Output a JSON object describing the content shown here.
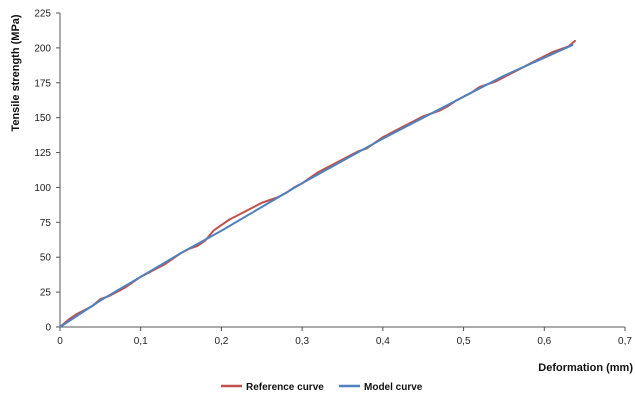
{
  "chart_data": {
    "type": "line",
    "title": "",
    "xlabel": "Deformation (mm)",
    "ylabel": "Tensile strength (MPa)",
    "xlim": [
      0,
      0.7
    ],
    "ylim": [
      0,
      225
    ],
    "x_ticks": [
      0,
      0.1,
      0.2,
      0.3,
      0.4,
      0.5,
      0.6,
      0.7
    ],
    "x_tick_labels": [
      "0",
      "0,1",
      "0,2",
      "0,3",
      "0,4",
      "0,5",
      "0,6",
      "0,7"
    ],
    "y_ticks": [
      0,
      25,
      50,
      75,
      100,
      125,
      150,
      175,
      200,
      225
    ],
    "y_tick_labels": [
      "0",
      "25",
      "50",
      "75",
      "100",
      "125",
      "150",
      "175",
      "200",
      "225"
    ],
    "grid": false,
    "legend_position": "bottom-center",
    "series": [
      {
        "name": "Reference curve",
        "color": "#c0504d",
        "x": [
          0,
          0.01,
          0.02,
          0.03,
          0.04,
          0.05,
          0.06,
          0.07,
          0.08,
          0.09,
          0.1,
          0.11,
          0.12,
          0.13,
          0.14,
          0.15,
          0.16,
          0.17,
          0.18,
          0.19,
          0.2,
          0.21,
          0.22,
          0.23,
          0.24,
          0.25,
          0.26,
          0.27,
          0.28,
          0.29,
          0.3,
          0.31,
          0.32,
          0.33,
          0.34,
          0.35,
          0.36,
          0.37,
          0.38,
          0.39,
          0.4,
          0.41,
          0.42,
          0.43,
          0.44,
          0.45,
          0.46,
          0.47,
          0.48,
          0.49,
          0.5,
          0.51,
          0.52,
          0.53,
          0.54,
          0.55,
          0.56,
          0.57,
          0.58,
          0.59,
          0.6,
          0.61,
          0.62,
          0.63,
          0.638
        ],
        "y": [
          0,
          5,
          9,
          12,
          15,
          20,
          22,
          25,
          28,
          32,
          36,
          39,
          42,
          45,
          49,
          53,
          56,
          58,
          62,
          69,
          73,
          77,
          80,
          83,
          86,
          89,
          91,
          93,
          96,
          100,
          103,
          107,
          111,
          114,
          117,
          120,
          123,
          126,
          128,
          132,
          136,
          139,
          142,
          145,
          148,
          151,
          153,
          155,
          158,
          162,
          165,
          168,
          172,
          174,
          176,
          179,
          182,
          185,
          188,
          191,
          194,
          197,
          199,
          201,
          205
        ]
      },
      {
        "name": "Model curve",
        "color": "#4f81bd",
        "x": [
          0,
          0.05,
          0.1,
          0.15,
          0.2,
          0.25,
          0.3,
          0.35,
          0.4,
          0.45,
          0.5,
          0.55,
          0.6,
          0.635
        ],
        "y": [
          0,
          19,
          36,
          53,
          69,
          86,
          103,
          119,
          135,
          150,
          165,
          180,
          193,
          202
        ]
      }
    ]
  }
}
